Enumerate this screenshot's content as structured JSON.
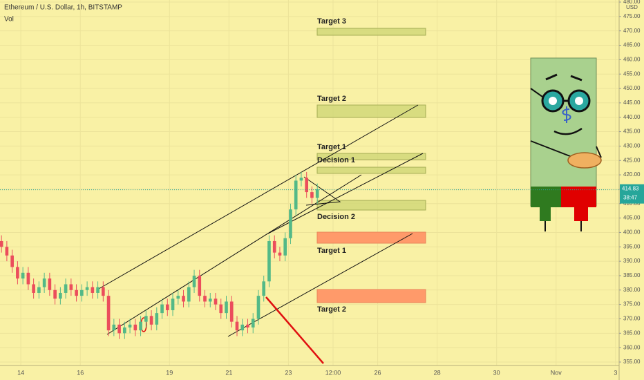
{
  "chart_data": {
    "type": "candlestick",
    "title": "Ethereum / U.S. Dollar, 1h, BITSTAMP",
    "subtitle": "Vol",
    "currency": "USD",
    "x": [
      13.35,
      13.53,
      13.71,
      13.89,
      14.07,
      14.25,
      14.43,
      14.61,
      14.79,
      14.97,
      15.15,
      15.33,
      15.51,
      15.69,
      15.87,
      16.05,
      16.23,
      16.41,
      16.59,
      16.77,
      16.95,
      17.13,
      17.31,
      17.49,
      17.67,
      17.85,
      18.03,
      18.21,
      18.39,
      18.57,
      18.75,
      18.93,
      19.11,
      19.29,
      19.47,
      19.65,
      19.83,
      20.01,
      20.19,
      20.37,
      20.55,
      20.73,
      20.91,
      21.09,
      21.27,
      21.45,
      21.63,
      21.81,
      21.99,
      22.17,
      22.35,
      22.53,
      22.71,
      22.89,
      23.07,
      23.25,
      23.43,
      23.61,
      23.79,
      23.97
    ],
    "open": [
      397,
      395,
      392,
      388,
      384,
      386,
      382,
      379,
      381,
      384,
      380,
      377,
      379,
      382,
      380,
      378,
      380,
      381,
      379,
      381,
      378,
      366,
      368,
      365,
      367,
      368,
      366,
      369,
      371,
      368,
      372,
      375,
      373,
      377,
      378,
      376,
      381,
      385,
      378,
      376,
      377,
      375,
      372,
      376,
      369,
      366,
      368,
      367,
      370,
      378,
      383,
      397,
      393,
      392,
      398,
      408,
      418,
      419,
      414,
      412
    ],
    "high": [
      399,
      397,
      394,
      390,
      388,
      388,
      384,
      383,
      386,
      386,
      382,
      381,
      384,
      384,
      382,
      382,
      383,
      383,
      383,
      383,
      380,
      370,
      370,
      369,
      370,
      370,
      371,
      373,
      373,
      374,
      377,
      377,
      379,
      380,
      380,
      383,
      387,
      387,
      380,
      379,
      379,
      377,
      378,
      378,
      371,
      370,
      370,
      372,
      380,
      385,
      399,
      399,
      395,
      400,
      410,
      420,
      421,
      421,
      416,
      417
    ],
    "low": [
      393,
      390,
      386,
      382,
      382,
      380,
      377,
      377,
      379,
      378,
      375,
      375,
      377,
      378,
      376,
      376,
      378,
      377,
      377,
      376,
      364,
      364,
      363,
      363,
      365,
      364,
      364,
      367,
      366,
      366,
      370,
      371,
      371,
      375,
      374,
      374,
      379,
      376,
      374,
      374,
      373,
      370,
      370,
      367,
      364,
      364,
      365,
      365,
      368,
      376,
      381,
      391,
      390,
      390,
      396,
      406,
      416,
      412,
      410,
      410
    ],
    "close": [
      395,
      392,
      388,
      384,
      386,
      382,
      379,
      381,
      384,
      380,
      377,
      379,
      382,
      380,
      378,
      380,
      381,
      379,
      381,
      378,
      366,
      368,
      365,
      367,
      368,
      366,
      369,
      371,
      368,
      372,
      375,
      373,
      377,
      378,
      376,
      381,
      385,
      378,
      376,
      377,
      375,
      372,
      376,
      369,
      366,
      368,
      367,
      370,
      378,
      383,
      397,
      393,
      392,
      398,
      408,
      418,
      419,
      414,
      412,
      415
    ],
    "up_color": "#53b987",
    "down_color": "#eb4d5c",
    "xlim": [
      13.3,
      34.12
    ],
    "xticks": [
      14,
      16,
      19,
      21,
      23,
      {
        "value": 24.5,
        "label": "12:00"
      },
      26,
      28,
      30,
      {
        "value": 32,
        "label": "Nov"
      },
      {
        "value": 34,
        "label": "3"
      }
    ],
    "ylim": [
      355,
      480
    ],
    "yticks": [
      {
        "value": 355,
        "label": "355.00"
      },
      {
        "value": 360,
        "label": "360.00"
      },
      {
        "value": 365,
        "label": "365.00"
      },
      {
        "value": 370,
        "label": "370.00"
      },
      {
        "value": 375,
        "label": "375.00"
      },
      {
        "value": 380,
        "label": "380.00"
      },
      {
        "value": 385,
        "label": "385.00"
      },
      {
        "value": 390,
        "label": "390.00"
      },
      {
        "value": 395,
        "label": "395.00"
      },
      {
        "value": 400,
        "label": "400.00"
      },
      {
        "value": 405,
        "label": "405.00"
      },
      {
        "value": 410,
        "label": "410.00"
      },
      {
        "value": 415,
        "label": "415.00"
      },
      {
        "value": 420,
        "label": "420.00"
      },
      {
        "value": 425,
        "label": "425.00"
      },
      {
        "value": 430,
        "label": "430.00"
      },
      {
        "value": 435,
        "label": "435.00"
      },
      {
        "value": 440,
        "label": "440.00"
      },
      {
        "value": 445,
        "label": "445.00"
      },
      {
        "value": 450,
        "label": "450.00"
      },
      {
        "value": 455,
        "label": "455.00"
      },
      {
        "value": 460,
        "label": "460.00"
      },
      {
        "value": 465,
        "label": "465.00"
      },
      {
        "value": 470,
        "label": "470.00"
      },
      {
        "value": 475,
        "label": "475.00"
      },
      {
        "value": 480,
        "label": "480.00"
      }
    ],
    "grid": true,
    "last_price": 414.83,
    "last_price_color": "#26a69a",
    "countdown": "38:47",
    "annotations": [
      "Target 3",
      "Target 2",
      "Target 1",
      "Decision 1",
      "Decision 2",
      "Target 1",
      "Target 2"
    ]
  }
}
